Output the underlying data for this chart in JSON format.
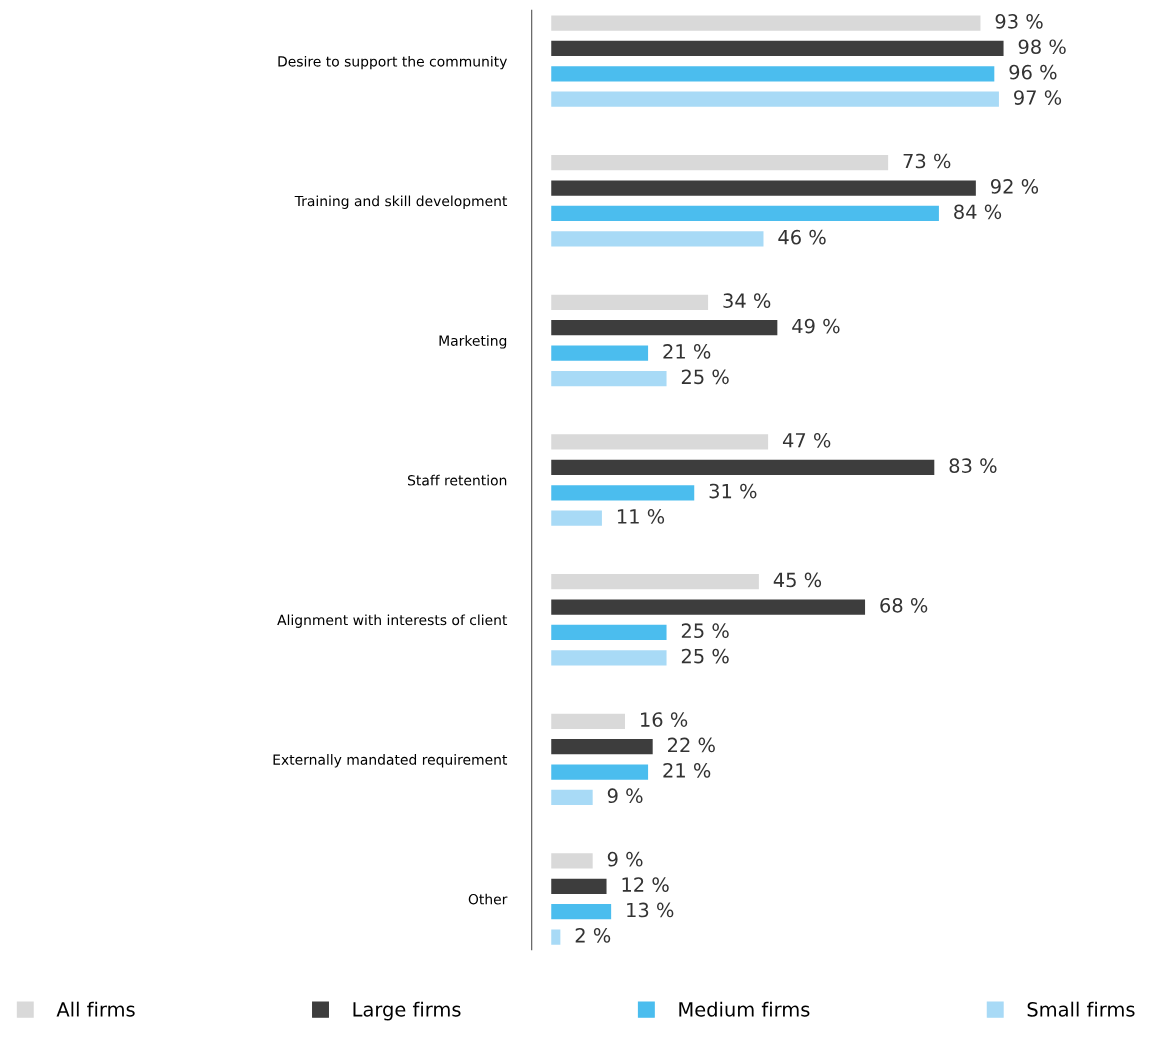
{
  "chart_data": {
    "type": "bar",
    "orientation": "horizontal",
    "categories": [
      "Desire to support the community",
      "Training and skill development",
      "Marketing",
      "Staff retention",
      "Alignment with interests of client",
      "Externally mandated requirement",
      "Other"
    ],
    "series": [
      {
        "name": "All firms",
        "color": "#d9d9d9",
        "values": [
          93,
          73,
          34,
          47,
          45,
          16,
          9
        ],
        "value_labels": [
          "93 %",
          "73 %",
          "34 %",
          "47 %",
          "45 %",
          "16 %",
          "9 %"
        ]
      },
      {
        "name": "Large firms",
        "color": "#3d3d3d",
        "values": [
          98,
          92,
          49,
          83,
          68,
          22,
          12
        ],
        "value_labels": [
          "98 %",
          "92 %",
          "49 %",
          "83 %",
          "68 %",
          "22 %",
          "12 %"
        ]
      },
      {
        "name": "Medium firms",
        "color": "#4bbdee",
        "values": [
          96,
          84,
          21,
          31,
          25,
          21,
          13
        ],
        "value_labels": [
          "96 %",
          "84 %",
          "21 %",
          "31 %",
          "25 %",
          "21 %",
          "13 %"
        ]
      },
      {
        "name": "Small firms",
        "color": "#a8daf6",
        "values": [
          97,
          46,
          25,
          11,
          25,
          9,
          2
        ],
        "value_labels": [
          "97 %",
          "46 %",
          "25 %",
          "11 %",
          "25 %",
          "9 %",
          "2 %"
        ]
      }
    ],
    "tick_labels": "y",
    "grid": false,
    "legend": "bottom"
  }
}
